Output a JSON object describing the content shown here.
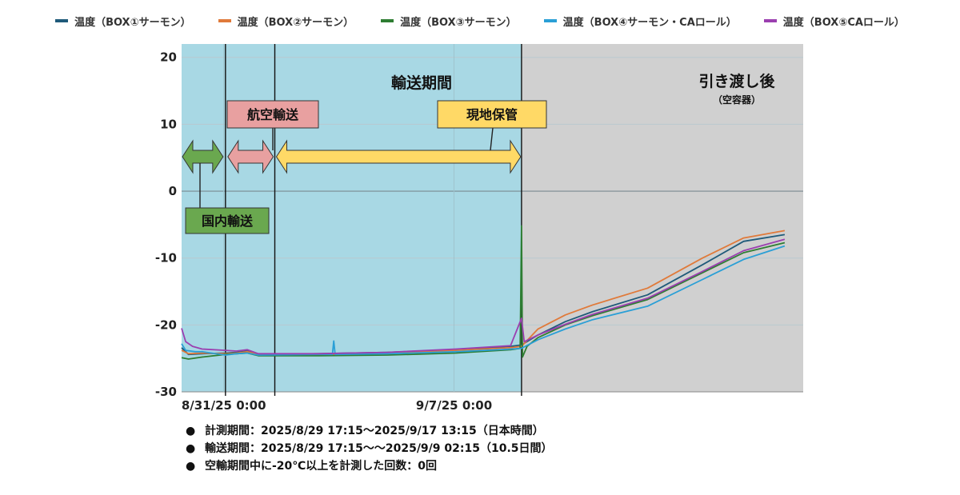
{
  "legend": [
    {
      "name": "温度（BOX①サーモン）",
      "color": "#1f5a7a"
    },
    {
      "name": "温度（BOX②サーモン）",
      "color": "#e07a3a"
    },
    {
      "name": "温度（BOX③サーモン）",
      "color": "#2e7d32"
    },
    {
      "name": "温度（BOX④サーモン・CAロール）",
      "color": "#2a9fd6"
    },
    {
      "name": "温度（BOX⑤CAロール）",
      "color": "#9b3fb0"
    }
  ],
  "chart_data": {
    "type": "line",
    "ylim": [
      -30,
      22
    ],
    "y_ticks": [
      20,
      10,
      0,
      -10,
      -20,
      -30
    ],
    "x_unit": "hours since 8/29/25 17:15",
    "xlim": [
      0,
      453.5
    ],
    "x_tick_labels": [
      {
        "x": 30.75,
        "label": "8/31/25 0:00"
      },
      {
        "x": 198.75,
        "label": "9/7/25 0:00"
      }
    ],
    "grid": true,
    "legend_position": "top",
    "colors": {
      "transport_bg": "#a8d8e4",
      "handover_bg": "#d0d0d0",
      "domestic": "#6aa84f",
      "air": "#e8a0a0",
      "local": "#ffd966"
    },
    "periods": {
      "transport_title": "輸送期間",
      "handover_title": "引き渡し後",
      "handover_sub": "（空容器）",
      "domestic_label": "国内輸送",
      "air_label": "航空輸送",
      "local_label": "現地保管"
    },
    "period_bounds": {
      "start": 0,
      "domestic_end": 32,
      "air_end": 68,
      "transport_end": 248,
      "end": 453.5
    },
    "series": [
      {
        "name": "温度（BOX①サーモン）",
        "color": "#1f5a7a",
        "points": [
          [
            0,
            -23.4
          ],
          [
            5,
            -24.4
          ],
          [
            15,
            -24.3
          ],
          [
            32,
            -24.2
          ],
          [
            40,
            -24.1
          ],
          [
            48,
            -23.9
          ],
          [
            56,
            -24.4
          ],
          [
            100,
            -24.3
          ],
          [
            150,
            -24.1
          ],
          [
            200,
            -23.7
          ],
          [
            240,
            -23.2
          ],
          [
            248,
            -23.0
          ],
          [
            260,
            -21.5
          ],
          [
            280,
            -19.5
          ],
          [
            300,
            -18.0
          ],
          [
            340,
            -15.5
          ],
          [
            380,
            -11.0
          ],
          [
            410,
            -7.5
          ],
          [
            440,
            -6.5
          ]
        ]
      },
      {
        "name": "温度（BOX②サーモン）",
        "color": "#e07a3a",
        "points": [
          [
            0,
            -23.8
          ],
          [
            5,
            -24.3
          ],
          [
            15,
            -24.2
          ],
          [
            32,
            -24.3
          ],
          [
            40,
            -24.2
          ],
          [
            48,
            -24.0
          ],
          [
            56,
            -24.4
          ],
          [
            100,
            -24.4
          ],
          [
            150,
            -24.2
          ],
          [
            200,
            -23.8
          ],
          [
            240,
            -23.4
          ],
          [
            248,
            -23.2
          ],
          [
            260,
            -20.6
          ],
          [
            280,
            -18.5
          ],
          [
            300,
            -17.0
          ],
          [
            340,
            -14.5
          ],
          [
            380,
            -10.0
          ],
          [
            410,
            -7.0
          ],
          [
            440,
            -5.9
          ]
        ]
      },
      {
        "name": "温度（BOX③サーモン）",
        "color": "#2e7d32",
        "points": [
          [
            0,
            -24.9
          ],
          [
            5,
            -25.1
          ],
          [
            15,
            -24.8
          ],
          [
            32,
            -24.4
          ],
          [
            40,
            -24.3
          ],
          [
            48,
            -24.2
          ],
          [
            56,
            -24.6
          ],
          [
            100,
            -24.6
          ],
          [
            150,
            -24.5
          ],
          [
            200,
            -24.2
          ],
          [
            240,
            -23.7
          ],
          [
            247,
            -23.5
          ],
          [
            248,
            -5.2
          ],
          [
            248.7,
            -24.8
          ],
          [
            252,
            -23.2
          ],
          [
            260,
            -21.9
          ],
          [
            280,
            -20.0
          ],
          [
            300,
            -18.6
          ],
          [
            340,
            -16.2
          ],
          [
            380,
            -12.2
          ],
          [
            410,
            -9.2
          ],
          [
            440,
            -7.7
          ]
        ]
      },
      {
        "name": "温度（BOX④サーモン・CAロール）",
        "color": "#2a9fd6",
        "points": [
          [
            0,
            -22.8
          ],
          [
            3,
            -23.8
          ],
          [
            10,
            -24.0
          ],
          [
            15,
            -24.0
          ],
          [
            32,
            -24.5
          ],
          [
            40,
            -24.3
          ],
          [
            48,
            -24.2
          ],
          [
            56,
            -24.5
          ],
          [
            100,
            -24.4
          ],
          [
            110,
            -24.4
          ],
          [
            111,
            -22.4
          ],
          [
            112,
            -24.4
          ],
          [
            150,
            -24.3
          ],
          [
            200,
            -24.0
          ],
          [
            240,
            -23.6
          ],
          [
            248,
            -23.5
          ],
          [
            260,
            -22.2
          ],
          [
            280,
            -20.6
          ],
          [
            300,
            -19.2
          ],
          [
            340,
            -17.2
          ],
          [
            380,
            -13.2
          ],
          [
            410,
            -10.2
          ],
          [
            440,
            -8.2
          ]
        ]
      },
      {
        "name": "温度（BOX⑤CAロール）",
        "color": "#9b3fb0",
        "points": [
          [
            0,
            -20.5
          ],
          [
            3,
            -22.5
          ],
          [
            8,
            -23.2
          ],
          [
            15,
            -23.6
          ],
          [
            32,
            -23.8
          ],
          [
            40,
            -23.9
          ],
          [
            48,
            -23.7
          ],
          [
            56,
            -24.3
          ],
          [
            100,
            -24.3
          ],
          [
            150,
            -24.1
          ],
          [
            200,
            -23.6
          ],
          [
            240,
            -23.1
          ],
          [
            248,
            -19.0
          ],
          [
            250,
            -22.5
          ],
          [
            260,
            -21.5
          ],
          [
            280,
            -19.9
          ],
          [
            300,
            -18.4
          ],
          [
            340,
            -16.0
          ],
          [
            380,
            -12.0
          ],
          [
            410,
            -8.9
          ],
          [
            440,
            -7.2
          ]
        ]
      }
    ]
  },
  "notes": [
    "計測期間：2025/8/29 17:15～2025/9/17 13:15（日本時間）",
    "輸送期間：2025/8/29 17:15～～2025/9/9 02:15（10.5日間）",
    "空輸期間中に-20℃以上を計測した回数：0回"
  ],
  "bullet": "●"
}
